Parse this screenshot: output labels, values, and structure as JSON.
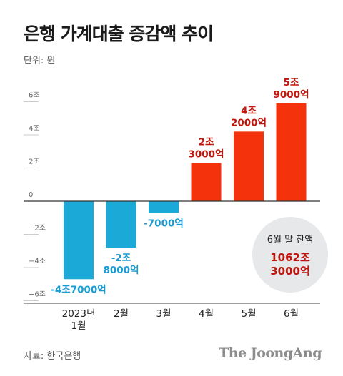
{
  "title": "은행 가계대출 증감액 추이",
  "unit": "단위: 원",
  "source": "자료: 한국은행",
  "brand": "The JoongAng",
  "balance_badge": {
    "label": "6월 말 잔액",
    "value_line1": "1062조",
    "value_line2": "3000억"
  },
  "colors": {
    "negative": "#1ba9d8",
    "positive": "#f4320b",
    "negative_label": "#1a9bd1",
    "positive_label": "#c0160c"
  },
  "chart_data": {
    "type": "bar",
    "categories": [
      [
        "2023년",
        "1월"
      ],
      [
        "2월"
      ],
      [
        "3월"
      ],
      [
        "4월"
      ],
      [
        "5월"
      ],
      [
        "6월"
      ]
    ],
    "values": [
      -4.7,
      -2.8,
      -0.7,
      2.3,
      4.2,
      5.9
    ],
    "data_labels": [
      [
        "-4조7000억"
      ],
      [
        "-2조",
        "8000억"
      ],
      [
        "-7000억"
      ],
      [
        "2조",
        "3000억"
      ],
      [
        "4조",
        "2000억"
      ],
      [
        "5조",
        "9000억"
      ]
    ],
    "y_ticks": [
      {
        "value": 6,
        "label": "6조"
      },
      {
        "value": 4,
        "label": "4조"
      },
      {
        "value": 2,
        "label": "2조"
      },
      {
        "value": 0,
        "label": "0"
      },
      {
        "value": -2,
        "label": "−2조"
      },
      {
        "value": -4,
        "label": "−4조"
      },
      {
        "value": -6,
        "label": "−6조"
      }
    ],
    "ylim": [
      -6.6,
      6.6
    ],
    "grid": false
  }
}
